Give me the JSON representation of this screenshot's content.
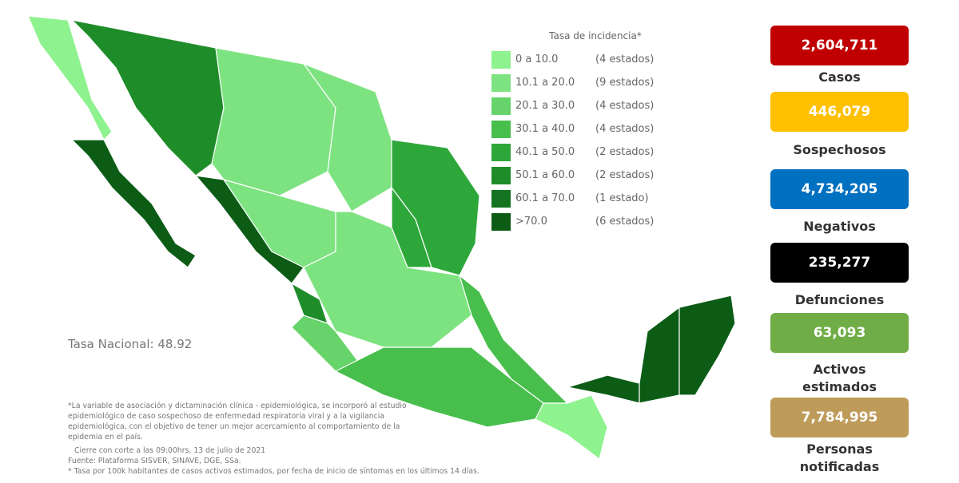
{
  "legend": {
    "title": "Tasa de incidencia*",
    "items": [
      {
        "range": "0   a  10.0",
        "count": "(4 estados)",
        "color": "#8ef28e"
      },
      {
        "range": "10.1 a  20.0",
        "count": "(9 estados)",
        "color": "#7de381"
      },
      {
        "range": "20.1 a  30.0",
        "count": "(4 estados)",
        "color": "#66d46a"
      },
      {
        "range": "30.1 a  40.0",
        "count": "(4 estados)",
        "color": "#48bf4d"
      },
      {
        "range": "40.1 a  50.0",
        "count": "(2 estados)",
        "color": "#2ea73a"
      },
      {
        "range": "50.1 a  60.0",
        "count": "(2 estados)",
        "color": "#1f8c2a"
      },
      {
        "range": "60.1 a  70.0",
        "count": "(1 estado)",
        "color": "#137320"
      },
      {
        "range": ">70.0",
        "count": "(6 estados)",
        "color": "#0c5c16"
      }
    ]
  },
  "national_rate": "Tasa Nacional: 48.92",
  "notes": {
    "variable": "*La variable de asociación y dictaminación clínica - epidemiológica, se incorporó al estudio epidemiológico de caso sospechoso de enfermedad respiratoria viral y a la vigilancia epidemiológica, con el objetivo de tener un mejor acercamiento al comportamiento de la epidemia en el país.",
    "cierre": "Cierre con corte a las 09:00hrs, 13 de julio de 2021",
    "fuente": "Fuente: Plataforma SISVER, SINAVE, DGE, SSa.",
    "tasa": "* Tasa por 100k habitantes de casos activos estimados, por fecha de inicio de síntomas en los últimos 14 días."
  },
  "stats": [
    {
      "value": "2,604,711",
      "label": "Casos",
      "color": "#c00000"
    },
    {
      "value": "446,079",
      "label": "Sospechosos",
      "color": "#ffc000"
    },
    {
      "value": "4,734,205",
      "label": "Negativos",
      "color": "#0070c0"
    },
    {
      "value": "235,277",
      "label": "Defunciones",
      "color": "#000000"
    },
    {
      "value": "63,093",
      "label": "Activos estimados",
      "color": "#70ad47"
    },
    {
      "value": "7,784,995",
      "label": "Personas notificadas",
      "color": "#bf9b5a"
    }
  ]
}
